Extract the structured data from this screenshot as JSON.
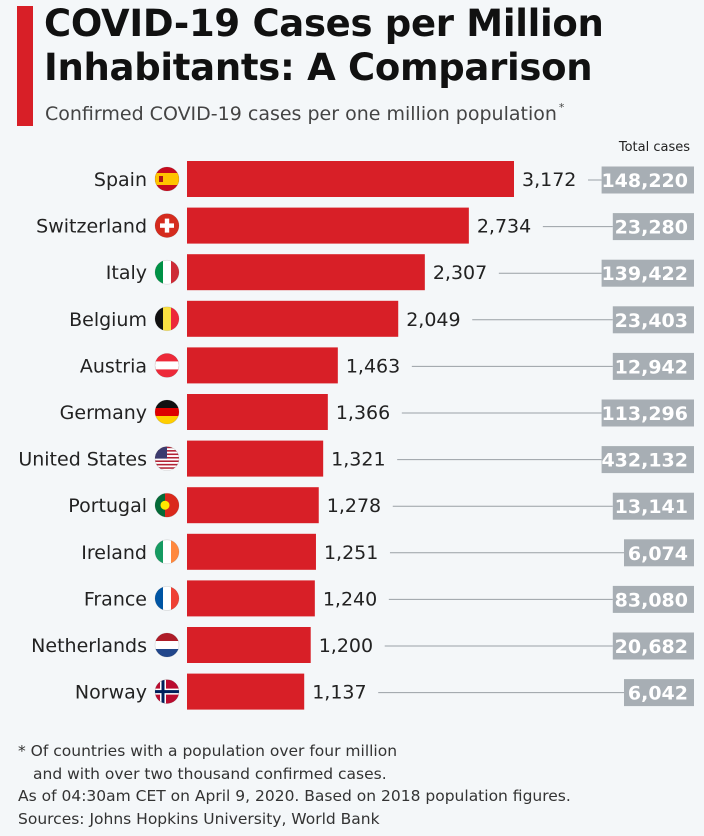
{
  "title_line1": "COVID-19 Cases per Million",
  "title_line2": "Inhabitants: A Comparison",
  "subtitle": "Confirmed COVID-19 cases per one million population",
  "subtitle_mark": "*",
  "total_cases_header": "Total cases",
  "colors": {
    "accent": "#d81f27",
    "bar": "#d81f27",
    "badge": "#a7aeb4",
    "leader": "#9aa0a6"
  },
  "chart_data": {
    "type": "bar",
    "orientation": "horizontal",
    "categories": [
      "Spain",
      "Switzerland",
      "Italy",
      "Belgium",
      "Austria",
      "Germany",
      "United States",
      "Portugal",
      "Ireland",
      "France",
      "Netherlands",
      "Norway"
    ],
    "values": [
      3172,
      2734,
      2307,
      2049,
      1463,
      1366,
      1321,
      1278,
      1251,
      1240,
      1200,
      1137
    ],
    "value_labels": [
      "3,172",
      "2,734",
      "2,307",
      "2,049",
      "1,463",
      "1,366",
      "1,321",
      "1,278",
      "1,251",
      "1,240",
      "1,200",
      "1,137"
    ],
    "total_cases": [
      "148,220",
      "23,280",
      "139,422",
      "23,403",
      "12,942",
      "113,296",
      "432,132",
      "13,141",
      "6,074",
      "83,080",
      "20,682",
      "6,042"
    ],
    "flag_icons": [
      "spain-flag-icon",
      "switzerland-flag-icon",
      "italy-flag-icon",
      "belgium-flag-icon",
      "austria-flag-icon",
      "germany-flag-icon",
      "united-states-flag-icon",
      "portugal-flag-icon",
      "ireland-flag-icon",
      "france-flag-icon",
      "netherlands-flag-icon",
      "norway-flag-icon"
    ],
    "xlim": [
      0,
      3172
    ]
  },
  "footnotes": {
    "line1": "* Of countries with a population over four million",
    "line2": "and with over two thousand confirmed cases.",
    "line3": "As of 04:30am CET on April 9, 2020. Based on 2018 population figures.",
    "line4": "Sources: Johns Hopkins University, World Bank"
  }
}
